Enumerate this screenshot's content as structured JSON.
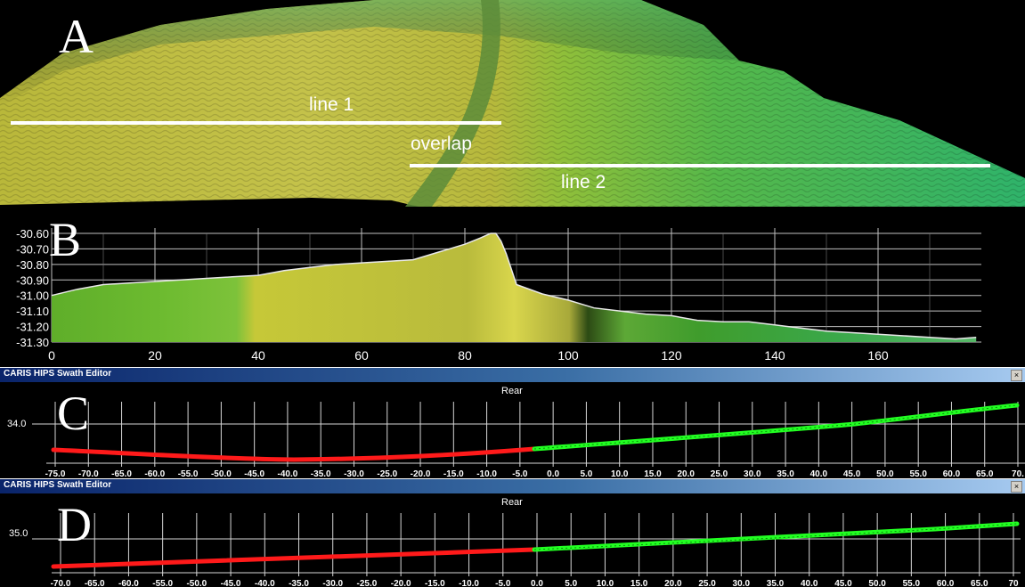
{
  "panelA": {
    "letter": "A",
    "labels": {
      "line1": "line 1",
      "overlap": "overlap",
      "line2": "line 2"
    }
  },
  "panelB": {
    "letter": "B",
    "yticks": [
      "-30.60",
      "-30.70",
      "-30.80",
      "-30.90",
      "-31.00",
      "-31.10",
      "-31.20",
      "-31.30"
    ],
    "xticks": [
      "0",
      "20",
      "40",
      "60",
      "80",
      "100",
      "120",
      "140",
      "160"
    ]
  },
  "panelC": {
    "window_title": "CARIS HIPS Swath Editor",
    "close_glyph": "×",
    "letter": "C",
    "view": "Rear",
    "ylabel": "34.0",
    "xticks": [
      "-75.0",
      "-70.0",
      "-65.0",
      "-60.0",
      "-55.0",
      "-50.0",
      "-45.0",
      "-40.0",
      "-35.0",
      "-30.0",
      "-25.0",
      "-20.0",
      "-15.0",
      "-10.0",
      "-5.0",
      "0.0",
      "5.0",
      "10.0",
      "15.0",
      "20.0",
      "25.0",
      "30.0",
      "35.0",
      "40.0",
      "45.0",
      "50.0",
      "55.0",
      "60.0",
      "65.0",
      "70."
    ]
  },
  "panelD": {
    "window_title": "CARIS HIPS Swath Editor",
    "close_glyph": "×",
    "letter": "D",
    "view": "Rear",
    "ylabel": "35.0",
    "xticks": [
      "-70.0",
      "-65.0",
      "-60.0",
      "-55.0",
      "-50.0",
      "-45.0",
      "-40.0",
      "-35.0",
      "-30.0",
      "-25.0",
      "-20.0",
      "-15.0",
      "-10.0",
      "-5.0",
      "0.0",
      "5.0",
      "10.0",
      "15.0",
      "20.0",
      "25.0",
      "30.0",
      "35.0",
      "40.0",
      "45.0",
      "50.0",
      "55.0",
      "60.0",
      "65.0",
      "70"
    ]
  },
  "colors": {
    "port": "#ff1a1a",
    "starboard": "#22ff22",
    "grid": "#d0d0d0",
    "profile_line": "#e8e8e8"
  },
  "chart_data": [
    {
      "type": "area",
      "xlim": [
        0,
        180
      ],
      "ylim": [
        -31.3,
        -30.6
      ],
      "x": [
        0,
        5,
        10,
        15,
        20,
        25,
        30,
        35,
        40,
        45,
        50,
        55,
        60,
        65,
        70,
        75,
        80,
        83,
        85,
        86,
        87,
        88,
        89,
        90,
        95,
        100,
        105,
        110,
        115,
        120,
        125,
        130,
        135,
        140,
        145,
        150,
        155,
        160,
        165,
        170,
        175,
        179
      ],
      "y": [
        -31.0,
        -30.96,
        -30.93,
        -30.92,
        -30.91,
        -30.9,
        -30.89,
        -30.88,
        -30.87,
        -30.84,
        -30.82,
        -30.8,
        -30.79,
        -30.78,
        -30.77,
        -30.72,
        -30.67,
        -30.63,
        -30.6,
        -30.6,
        -30.65,
        -30.73,
        -30.83,
        -30.93,
        -30.99,
        -31.03,
        -31.08,
        -31.1,
        -31.12,
        -31.13,
        -31.16,
        -31.17,
        -31.17,
        -31.19,
        -31.21,
        -31.23,
        -31.24,
        -31.25,
        -31.26,
        -31.27,
        -31.28,
        -31.27
      ]
    }
  ]
}
